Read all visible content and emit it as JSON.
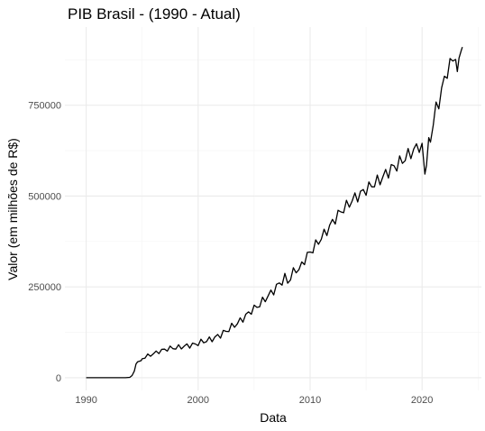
{
  "chart_data": {
    "type": "line",
    "title": "PIB Brasil - (1990 - Atual)",
    "xlabel": "Data",
    "ylabel": "Valor (em milhões de R$)",
    "xlim": [
      1988.1,
      2025.3
    ],
    "ylim": [
      -35000,
      965000
    ],
    "x_ticks": [
      1990,
      2000,
      2010,
      2020
    ],
    "x_tick_labels": [
      "1990",
      "2000",
      "2010",
      "2020"
    ],
    "x_minor": [
      1995,
      2005,
      2015,
      2025
    ],
    "y_ticks": [
      0,
      250000,
      500000,
      750000
    ],
    "y_tick_labels": [
      "0",
      "250000",
      "500000",
      "750000"
    ],
    "y_minor": [
      125000,
      375000,
      625000,
      875000
    ],
    "grid": true,
    "legend": "none",
    "line_color": "#000000",
    "series": [
      {
        "x": [
          1990.0,
          1991.0,
          1992.0,
          1993.0,
          1993.5,
          1993.9,
          1994.1,
          1994.3,
          1994.45,
          1994.6,
          1994.9,
          1995.0,
          1995.25,
          1995.5,
          1995.75,
          1996.0,
          1996.25,
          1996.5,
          1996.75,
          1997.0,
          1997.25,
          1997.5,
          1997.75,
          1998.0,
          1998.25,
          1998.5,
          1998.75,
          1999.0,
          1999.25,
          1999.5,
          1999.75,
          2000.0,
          2000.25,
          2000.5,
          2000.75,
          2001.0,
          2001.25,
          2001.5,
          2001.75,
          2002.0,
          2002.25,
          2002.5,
          2002.75,
          2003.0,
          2003.25,
          2003.5,
          2003.75,
          2004.0,
          2004.25,
          2004.5,
          2004.75,
          2005.0,
          2005.25,
          2005.5,
          2005.75,
          2006.0,
          2006.25,
          2006.5,
          2006.75,
          2007.0,
          2007.25,
          2007.5,
          2007.75,
          2008.0,
          2008.25,
          2008.5,
          2008.75,
          2009.0,
          2009.25,
          2009.5,
          2009.75,
          2010.0,
          2010.25,
          2010.5,
          2010.75,
          2011.0,
          2011.25,
          2011.5,
          2011.75,
          2012.0,
          2012.25,
          2012.5,
          2012.75,
          2013.0,
          2013.25,
          2013.5,
          2013.75,
          2014.0,
          2014.25,
          2014.5,
          2014.75,
          2015.0,
          2015.25,
          2015.5,
          2015.75,
          2016.0,
          2016.25,
          2016.5,
          2016.75,
          2017.0,
          2017.25,
          2017.5,
          2017.75,
          2018.0,
          2018.25,
          2018.5,
          2018.75,
          2019.0,
          2019.25,
          2019.5,
          2019.75,
          2020.0,
          2020.25,
          2020.4,
          2020.6,
          2020.75,
          2021.0,
          2021.25,
          2021.5,
          2021.75,
          2022.0,
          2022.25,
          2022.5,
          2022.75,
          2023.0,
          2023.15,
          2023.3,
          2023.5,
          2023.6
        ],
        "values": [
          0,
          0,
          0,
          0,
          0,
          1000,
          6000,
          18000,
          38000,
          44000,
          47000,
          52000,
          57000,
          60000,
          63000,
          66000,
          69000,
          72000,
          75000,
          77000,
          79000,
          81000,
          82000,
          82000,
          84000,
          85000,
          86000,
          88000,
          89000,
          90000,
          92000,
          95000,
          98000,
          100000,
          102000,
          104000,
          107000,
          110000,
          114000,
          118000,
          123000,
          128000,
          134000,
          140000,
          145000,
          150000,
          156000,
          163000,
          170000,
          177000,
          185000,
          190000,
          196000,
          202000,
          210000,
          218000,
          225000,
          232000,
          240000,
          250000,
          258000,
          266000,
          275000,
          265000,
          275000,
          290000,
          300000,
          295000,
          310000,
          325000,
          335000,
          345000,
          355000,
          365000,
          375000,
          385000,
          395000,
          405000,
          415000,
          428000,
          438000,
          448000,
          458000,
          465000,
          472000,
          480000,
          488000,
          495000,
          500000,
          505000,
          512000,
          518000,
          523000,
          530000,
          535000,
          540000,
          545000,
          552000,
          560000,
          568000,
          575000,
          580000,
          585000,
          592000,
          598000,
          605000,
          612000,
          620000,
          625000,
          632000,
          640000,
          630000,
          560000,
          600000,
          640000,
          660000,
          700000,
          740000,
          760000,
          790000,
          820000,
          845000,
          860000,
          875000,
          890000,
          820000,
          880000,
          900000,
          910000
        ]
      }
    ]
  }
}
